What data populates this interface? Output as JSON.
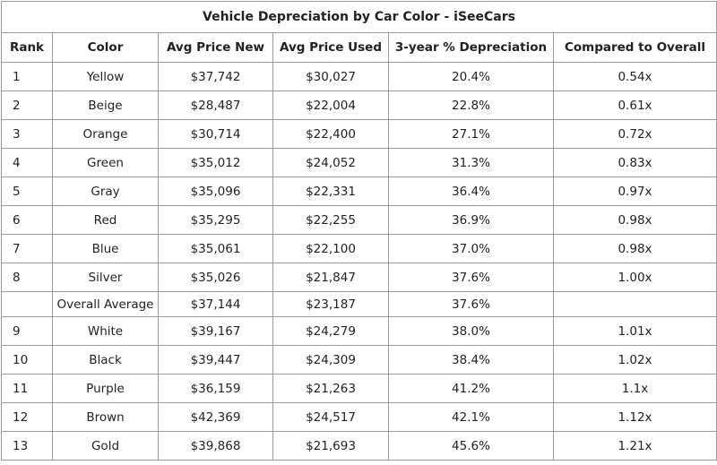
{
  "title": "Vehicle Depreciation by Car Color - iSeeCars",
  "columns": [
    "Rank",
    "Color",
    "Avg Price New",
    "Avg Price Used",
    "3-year % Depreciation",
    "Compared to Overall"
  ],
  "rows": [
    [
      "1",
      "Yellow",
      "$37,742",
      "$30,027",
      "20.4%",
      "0.54x"
    ],
    [
      "2",
      "Beige",
      "$28,487",
      "$22,004",
      "22.8%",
      "0.61x"
    ],
    [
      "3",
      "Orange",
      "$30,714",
      "$22,400",
      "27.1%",
      "0.72x"
    ],
    [
      "4",
      "Green",
      "$35,012",
      "$24,052",
      "31.3%",
      "0.83x"
    ],
    [
      "5",
      "Gray",
      "$35,096",
      "$22,331",
      "36.4%",
      "0.97x"
    ],
    [
      "6",
      "Red",
      "$35,295",
      "$22,255",
      "36.9%",
      "0.98x"
    ],
    [
      "7",
      "Blue",
      "$35,061",
      "$22,100",
      "37.0%",
      "0.98x"
    ],
    [
      "8",
      "Silver",
      "$35,026",
      "$21,847",
      "37.6%",
      "1.00x"
    ],
    [
      "",
      "Overall Average",
      "$37,144",
      "$23,187",
      "37.6%",
      ""
    ],
    [
      "9",
      "White",
      "$39,167",
      "$24,279",
      "38.0%",
      "1.01x"
    ],
    [
      "10",
      "Black",
      "$39,447",
      "$24,309",
      "38.4%",
      "1.02x"
    ],
    [
      "11",
      "Purple",
      "$36,159",
      "$21,263",
      "41.2%",
      "1.1x"
    ],
    [
      "12",
      "Brown",
      "$42,369",
      "$24,517",
      "42.1%",
      "1.12x"
    ],
    [
      "13",
      "Gold",
      "$39,868",
      "$21,693",
      "45.6%",
      "1.21x"
    ]
  ]
}
